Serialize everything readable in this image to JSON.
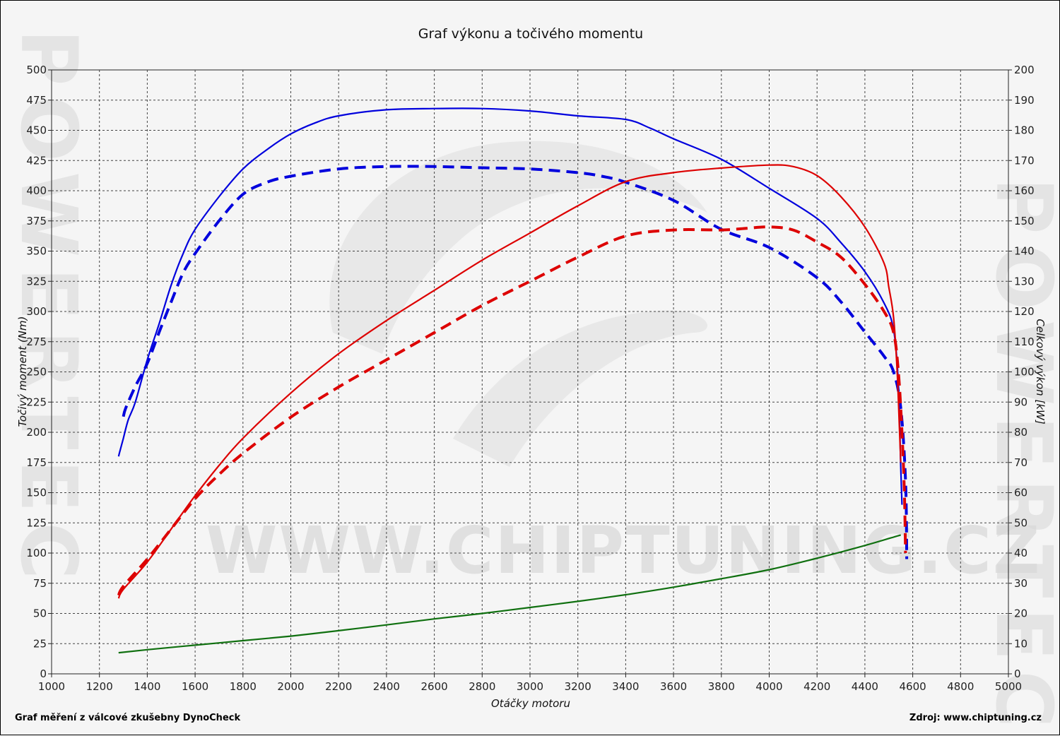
{
  "chart_data": {
    "type": "line",
    "title": "Graf výkonu a točivého momentu",
    "xlabel": "Otáčky motoru",
    "ylabel_left": "Točivý moment (Nm)",
    "ylabel_right": "Celkový výkon [kW]",
    "xlim": [
      1000,
      5000
    ],
    "ylim_left": [
      0,
      500
    ],
    "ylim_right": [
      0,
      200
    ],
    "x_ticks": [
      "1000",
      "1200",
      "1400",
      "1600",
      "1800",
      "2000",
      "2200",
      "2400",
      "2600",
      "2800",
      "3000",
      "3200",
      "3400",
      "3600",
      "3800",
      "4000",
      "4200",
      "4400",
      "4600",
      "4800",
      "5000"
    ],
    "y_left_ticks": [
      "0",
      "25",
      "50",
      "75",
      "100",
      "125",
      "150",
      "175",
      "200",
      "225",
      "250",
      "275",
      "300",
      "325",
      "350",
      "375",
      "400",
      "425",
      "450",
      "475",
      "500"
    ],
    "y_right_ticks": [
      "0",
      "10",
      "20",
      "30",
      "40",
      "50",
      "60",
      "70",
      "80",
      "90",
      "100",
      "110",
      "120",
      "130",
      "140",
      "150",
      "160",
      "170",
      "180",
      "190",
      "200"
    ],
    "grid": true,
    "series": [
      {
        "axis": "left",
        "color": "#0000dd",
        "style": "solid",
        "points": [
          [
            1280,
            180
          ],
          [
            1285,
            184
          ],
          [
            1300,
            195
          ],
          [
            1320,
            210
          ],
          [
            1350,
            225
          ],
          [
            1400,
            260
          ],
          [
            1450,
            290
          ],
          [
            1500,
            322
          ],
          [
            1550,
            348
          ],
          [
            1600,
            368
          ],
          [
            1700,
            395
          ],
          [
            1800,
            418
          ],
          [
            1900,
            434
          ],
          [
            2000,
            447
          ],
          [
            2100,
            456
          ],
          [
            2200,
            462
          ],
          [
            2400,
            467
          ],
          [
            2600,
            468
          ],
          [
            2800,
            468
          ],
          [
            3000,
            466
          ],
          [
            3200,
            462
          ],
          [
            3400,
            459
          ],
          [
            3500,
            452
          ],
          [
            3600,
            443
          ],
          [
            3800,
            426
          ],
          [
            4000,
            402
          ],
          [
            4200,
            377
          ],
          [
            4300,
            357
          ],
          [
            4400,
            333
          ],
          [
            4480,
            307
          ],
          [
            4520,
            285
          ],
          [
            4540,
            240
          ],
          [
            4550,
            170
          ],
          [
            4555,
            140
          ]
        ]
      },
      {
        "axis": "left",
        "color": "#0000dd",
        "style": "dashed",
        "points": [
          [
            1300,
            213
          ],
          [
            1310,
            220
          ],
          [
            1350,
            238
          ],
          [
            1400,
            257
          ],
          [
            1450,
            283
          ],
          [
            1500,
            308
          ],
          [
            1550,
            332
          ],
          [
            1600,
            348
          ],
          [
            1700,
            375
          ],
          [
            1800,
            397
          ],
          [
            1900,
            407
          ],
          [
            2000,
            412
          ],
          [
            2200,
            418
          ],
          [
            2400,
            420
          ],
          [
            2600,
            420
          ],
          [
            2800,
            419
          ],
          [
            3000,
            418
          ],
          [
            3200,
            415
          ],
          [
            3300,
            412
          ],
          [
            3400,
            407
          ],
          [
            3600,
            392
          ],
          [
            3800,
            368
          ],
          [
            4000,
            353
          ],
          [
            4200,
            328
          ],
          [
            4300,
            308
          ],
          [
            4400,
            283
          ],
          [
            4480,
            263
          ],
          [
            4520,
            250
          ],
          [
            4550,
            220
          ],
          [
            4570,
            160
          ],
          [
            4575,
            95
          ]
        ]
      },
      {
        "axis": "right",
        "color": "#dd0000",
        "style": "solid",
        "points": [
          [
            1280,
            25
          ],
          [
            1300,
            28
          ],
          [
            1400,
            37
          ],
          [
            1500,
            48
          ],
          [
            1600,
            59
          ],
          [
            1700,
            69
          ],
          [
            1800,
            78
          ],
          [
            2000,
            93
          ],
          [
            2200,
            106
          ],
          [
            2400,
            117
          ],
          [
            2600,
            127
          ],
          [
            2800,
            137
          ],
          [
            3000,
            146
          ],
          [
            3200,
            155
          ],
          [
            3400,
            163
          ],
          [
            3600,
            166
          ],
          [
            3800,
            167.5
          ],
          [
            4000,
            168.5
          ],
          [
            4100,
            168
          ],
          [
            4200,
            165
          ],
          [
            4300,
            158
          ],
          [
            4400,
            148
          ],
          [
            4480,
            136
          ],
          [
            4500,
            128
          ],
          [
            4520,
            118
          ],
          [
            4535,
            100
          ],
          [
            4545,
            80
          ],
          [
            4550,
            70
          ]
        ]
      },
      {
        "axis": "right",
        "color": "#dd0000",
        "style": "dashed",
        "points": [
          [
            1280,
            26
          ],
          [
            1300,
            29
          ],
          [
            1400,
            38
          ],
          [
            1500,
            48
          ],
          [
            1600,
            58
          ],
          [
            1700,
            66
          ],
          [
            1800,
            73
          ],
          [
            2000,
            85
          ],
          [
            2200,
            95
          ],
          [
            2400,
            104
          ],
          [
            2600,
            113
          ],
          [
            2800,
            122
          ],
          [
            3000,
            130
          ],
          [
            3200,
            138
          ],
          [
            3400,
            145
          ],
          [
            3600,
            147
          ],
          [
            3800,
            147
          ],
          [
            3900,
            147.5
          ],
          [
            4000,
            148
          ],
          [
            4100,
            147
          ],
          [
            4200,
            143
          ],
          [
            4300,
            138
          ],
          [
            4400,
            129
          ],
          [
            4480,
            120
          ],
          [
            4520,
            113
          ],
          [
            4540,
            100
          ],
          [
            4555,
            80
          ],
          [
            4565,
            60
          ],
          [
            4570,
            40
          ]
        ]
      },
      {
        "axis": "right",
        "color": "#107010",
        "style": "solid",
        "points": [
          [
            1280,
            7
          ],
          [
            1400,
            8
          ],
          [
            1600,
            9.5
          ],
          [
            1800,
            11
          ],
          [
            2000,
            12.5
          ],
          [
            2200,
            14.3
          ],
          [
            2400,
            16.2
          ],
          [
            2600,
            18.2
          ],
          [
            2800,
            20
          ],
          [
            3000,
            22
          ],
          [
            3200,
            24
          ],
          [
            3400,
            26.2
          ],
          [
            3600,
            28.7
          ],
          [
            3800,
            31.5
          ],
          [
            4000,
            34.5
          ],
          [
            4200,
            38.3
          ],
          [
            4400,
            42.5
          ],
          [
            4550,
            46
          ]
        ]
      }
    ]
  },
  "footer": {
    "left": "Graf měření z válcové zkušebny DynoCheck",
    "right": "Zdroj: www.chiptuning.cz"
  },
  "watermark": {
    "url": "WWW.CHIPTUNING.CZ",
    "brand": "POWERTEC"
  }
}
